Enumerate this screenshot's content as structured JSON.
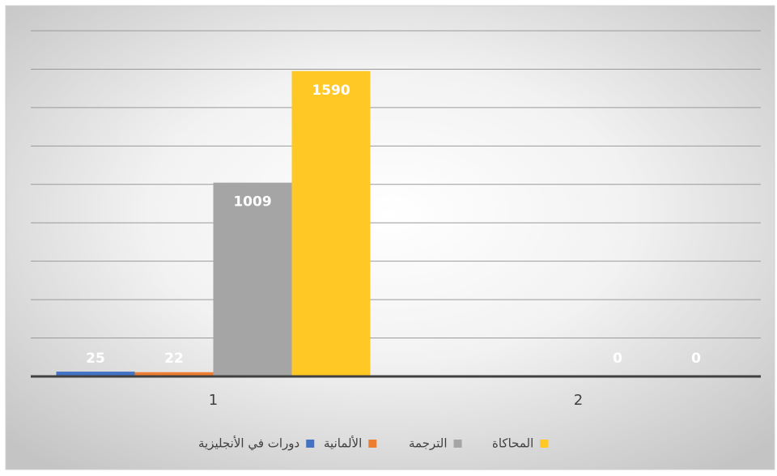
{
  "chart_data": {
    "type": "bar",
    "categories": [
      "1",
      "2"
    ],
    "series": [
      {
        "name": "دورات في الأنجليزية",
        "color": "#4472c4",
        "values": [
          25,
          null
        ]
      },
      {
        "name": "الألمانية",
        "color": "#ed7d31",
        "values": [
          22,
          null
        ]
      },
      {
        "name": "الترجمة",
        "color": "#a5a5a5",
        "values": [
          1009,
          0
        ]
      },
      {
        "name": "المحاكاة",
        "color": "#ffc825",
        "values": [
          1590,
          0
        ]
      }
    ],
    "ylim": [
      0,
      1800
    ],
    "yticks": [
      0,
      200,
      400,
      600,
      800,
      1000,
      1200,
      1400,
      1600,
      1800
    ],
    "grid": true,
    "legend": "bottom"
  }
}
